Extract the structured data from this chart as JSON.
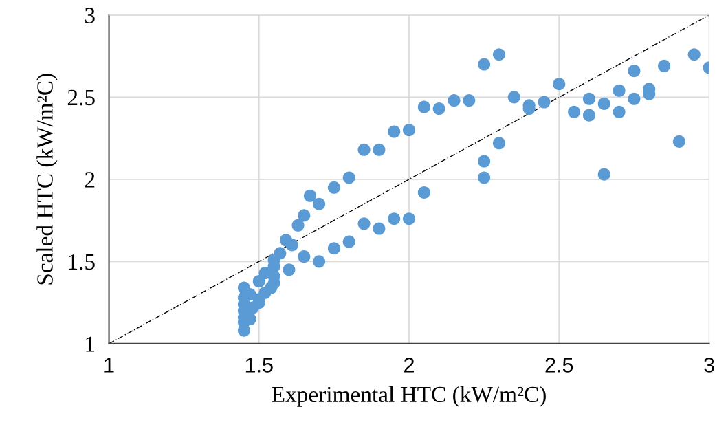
{
  "chart_data": {
    "type": "scatter",
    "xlabel": "Experimental HTC (kW/m²C)",
    "ylabel": "Scaled HTC (kW/m²C)",
    "xlim": [
      1,
      3
    ],
    "ylim": [
      1,
      3
    ],
    "xticks": [
      1,
      1.5,
      2,
      2.5,
      3
    ],
    "yticks": [
      1,
      1.5,
      2,
      2.5,
      3
    ],
    "grid": true,
    "marker": "circle",
    "series": [
      {
        "color": "#5b9bd5",
        "x": [
          1.45,
          1.45,
          1.47,
          1.5,
          1.52,
          1.55,
          1.55,
          1.57,
          1.59,
          1.61,
          1.63,
          1.65,
          1.67,
          1.7,
          1.75,
          1.8,
          1.85,
          1.9,
          1.95,
          2.0,
          2.05,
          2.1,
          2.15,
          2.2,
          2.25,
          2.3,
          2.35,
          2.4,
          2.4,
          2.45,
          2.5,
          2.55,
          2.6,
          2.6,
          2.65,
          2.7,
          2.7,
          2.75,
          2.75,
          2.8,
          2.8,
          2.85,
          2.95,
          3.0,
          2.9,
          2.65,
          2.3,
          2.25,
          2.25,
          2.05,
          1.45,
          1.45,
          1.45,
          1.45,
          1.45,
          1.47,
          1.48,
          1.5,
          1.5,
          1.52,
          1.54,
          1.55,
          1.55,
          1.6,
          1.65,
          1.7,
          1.75,
          1.8,
          1.85,
          1.9,
          1.95,
          2.0
        ],
        "values": [
          1.34,
          1.28,
          1.3,
          1.38,
          1.43,
          1.47,
          1.51,
          1.55,
          1.63,
          1.6,
          1.72,
          1.78,
          1.9,
          1.85,
          1.95,
          2.01,
          2.18,
          2.18,
          2.29,
          2.3,
          2.44,
          2.43,
          2.48,
          2.48,
          2.7,
          2.76,
          2.5,
          2.45,
          2.43,
          2.47,
          2.58,
          2.41,
          2.49,
          2.39,
          2.46,
          2.54,
          2.41,
          2.66,
          2.49,
          2.55,
          2.52,
          2.69,
          2.76,
          2.68,
          2.23,
          2.03,
          2.22,
          2.11,
          2.01,
          1.92,
          1.08,
          1.13,
          1.16,
          1.2,
          1.24,
          1.15,
          1.22,
          1.25,
          1.27,
          1.31,
          1.34,
          1.37,
          1.41,
          1.45,
          1.53,
          1.5,
          1.58,
          1.62,
          1.73,
          1.7,
          1.76,
          1.76
        ]
      },
      {
        "type": "line",
        "color": "#000000",
        "line_style": "dashed",
        "marker": "none",
        "x": [
          1,
          3
        ],
        "values": [
          1,
          3
        ]
      }
    ]
  }
}
